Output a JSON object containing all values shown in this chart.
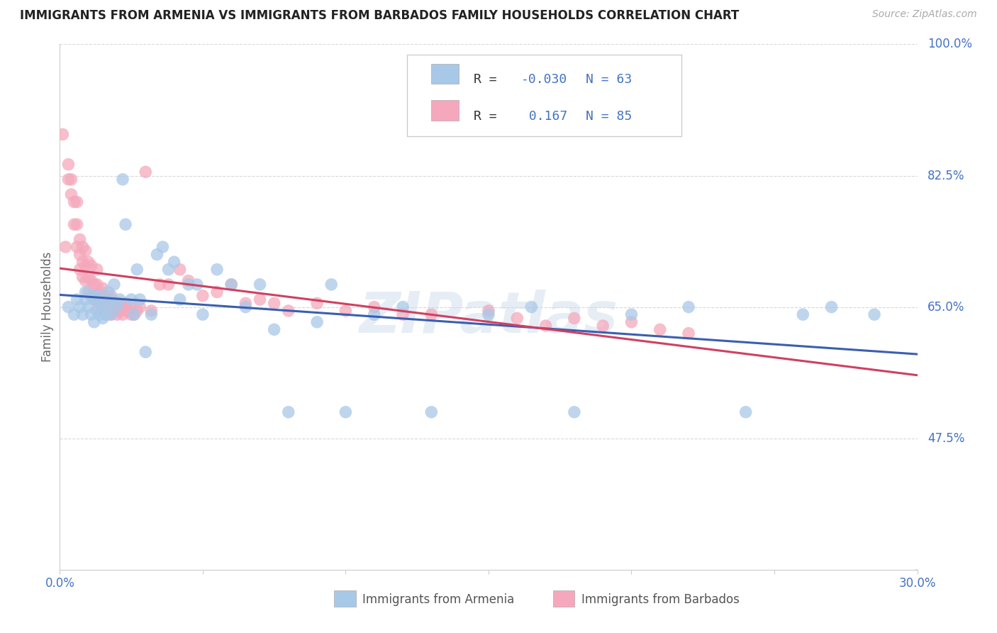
{
  "title": "IMMIGRANTS FROM ARMENIA VS IMMIGRANTS FROM BARBADOS FAMILY HOUSEHOLDS CORRELATION CHART",
  "source": "Source: ZipAtlas.com",
  "xlabel_armenia": "Immigrants from Armenia",
  "xlabel_barbados": "Immigrants from Barbados",
  "ylabel": "Family Households",
  "armenia_R": -0.03,
  "armenia_N": 63,
  "barbados_R": 0.167,
  "barbados_N": 85,
  "xlim": [
    0.0,
    0.3
  ],
  "ylim": [
    0.3,
    1.0
  ],
  "yticks": [
    0.3,
    0.475,
    0.65,
    0.825,
    1.0
  ],
  "ytick_labels": [
    "",
    "47.5%",
    "65.0%",
    "82.5%",
    "100.0%"
  ],
  "xticks": [
    0.0,
    0.05,
    0.1,
    0.15,
    0.2,
    0.25,
    0.3
  ],
  "xtick_labels": [
    "0.0%",
    "",
    "",
    "",
    "",
    "",
    "30.0%"
  ],
  "color_armenia": "#a8c8e8",
  "color_barbados": "#f5a8bc",
  "color_armenia_line": "#3a5fb0",
  "color_barbados_line": "#d04060",
  "color_diag_line": "#d0c8c8",
  "color_tick_labels": "#4472c4",
  "watermark": "ZIPatlas",
  "armenia_x": [
    0.003,
    0.005,
    0.006,
    0.007,
    0.008,
    0.009,
    0.009,
    0.01,
    0.011,
    0.011,
    0.012,
    0.012,
    0.013,
    0.013,
    0.014,
    0.014,
    0.015,
    0.015,
    0.016,
    0.017,
    0.017,
    0.018,
    0.018,
    0.019,
    0.02,
    0.021,
    0.022,
    0.023,
    0.025,
    0.026,
    0.027,
    0.028,
    0.03,
    0.032,
    0.034,
    0.036,
    0.038,
    0.04,
    0.042,
    0.045,
    0.048,
    0.05,
    0.055,
    0.06,
    0.065,
    0.07,
    0.075,
    0.08,
    0.09,
    0.095,
    0.1,
    0.11,
    0.12,
    0.13,
    0.15,
    0.165,
    0.18,
    0.2,
    0.22,
    0.24,
    0.26,
    0.27,
    0.285
  ],
  "armenia_y": [
    0.65,
    0.64,
    0.66,
    0.65,
    0.64,
    0.66,
    0.67,
    0.65,
    0.64,
    0.665,
    0.63,
    0.66,
    0.645,
    0.665,
    0.64,
    0.66,
    0.635,
    0.65,
    0.64,
    0.655,
    0.67,
    0.64,
    0.66,
    0.68,
    0.65,
    0.66,
    0.82,
    0.76,
    0.66,
    0.64,
    0.7,
    0.66,
    0.59,
    0.64,
    0.72,
    0.73,
    0.7,
    0.71,
    0.66,
    0.68,
    0.68,
    0.64,
    0.7,
    0.68,
    0.65,
    0.68,
    0.62,
    0.51,
    0.63,
    0.68,
    0.51,
    0.64,
    0.65,
    0.51,
    0.64,
    0.65,
    0.51,
    0.64,
    0.65,
    0.51,
    0.64,
    0.65,
    0.64
  ],
  "barbados_x": [
    0.001,
    0.002,
    0.003,
    0.003,
    0.004,
    0.004,
    0.005,
    0.005,
    0.006,
    0.006,
    0.006,
    0.007,
    0.007,
    0.007,
    0.008,
    0.008,
    0.008,
    0.009,
    0.009,
    0.009,
    0.01,
    0.01,
    0.01,
    0.011,
    0.011,
    0.011,
    0.012,
    0.012,
    0.013,
    0.013,
    0.013,
    0.014,
    0.014,
    0.015,
    0.015,
    0.015,
    0.016,
    0.016,
    0.017,
    0.017,
    0.018,
    0.018,
    0.018,
    0.019,
    0.019,
    0.02,
    0.02,
    0.021,
    0.021,
    0.022,
    0.022,
    0.023,
    0.023,
    0.024,
    0.025,
    0.025,
    0.026,
    0.027,
    0.028,
    0.03,
    0.032,
    0.035,
    0.038,
    0.042,
    0.045,
    0.05,
    0.055,
    0.06,
    0.065,
    0.07,
    0.075,
    0.08,
    0.09,
    0.1,
    0.11,
    0.12,
    0.13,
    0.15,
    0.16,
    0.17,
    0.18,
    0.19,
    0.2,
    0.21,
    0.22
  ],
  "barbados_y": [
    0.88,
    0.73,
    0.82,
    0.84,
    0.8,
    0.82,
    0.76,
    0.79,
    0.73,
    0.76,
    0.79,
    0.7,
    0.72,
    0.74,
    0.69,
    0.71,
    0.73,
    0.685,
    0.705,
    0.725,
    0.67,
    0.69,
    0.71,
    0.665,
    0.685,
    0.705,
    0.66,
    0.68,
    0.66,
    0.68,
    0.7,
    0.65,
    0.67,
    0.65,
    0.665,
    0.675,
    0.64,
    0.66,
    0.64,
    0.66,
    0.64,
    0.655,
    0.665,
    0.645,
    0.655,
    0.64,
    0.655,
    0.645,
    0.655,
    0.64,
    0.65,
    0.645,
    0.655,
    0.645,
    0.64,
    0.65,
    0.64,
    0.645,
    0.65,
    0.83,
    0.645,
    0.68,
    0.68,
    0.7,
    0.685,
    0.665,
    0.67,
    0.68,
    0.655,
    0.66,
    0.655,
    0.645,
    0.655,
    0.645,
    0.65,
    0.64,
    0.64,
    0.645,
    0.635,
    0.625,
    0.635,
    0.625,
    0.63,
    0.62,
    0.615
  ],
  "armenia_trend": [
    -0.03,
    0.66
  ],
  "barbados_trend": [
    0.167,
    0.62
  ]
}
